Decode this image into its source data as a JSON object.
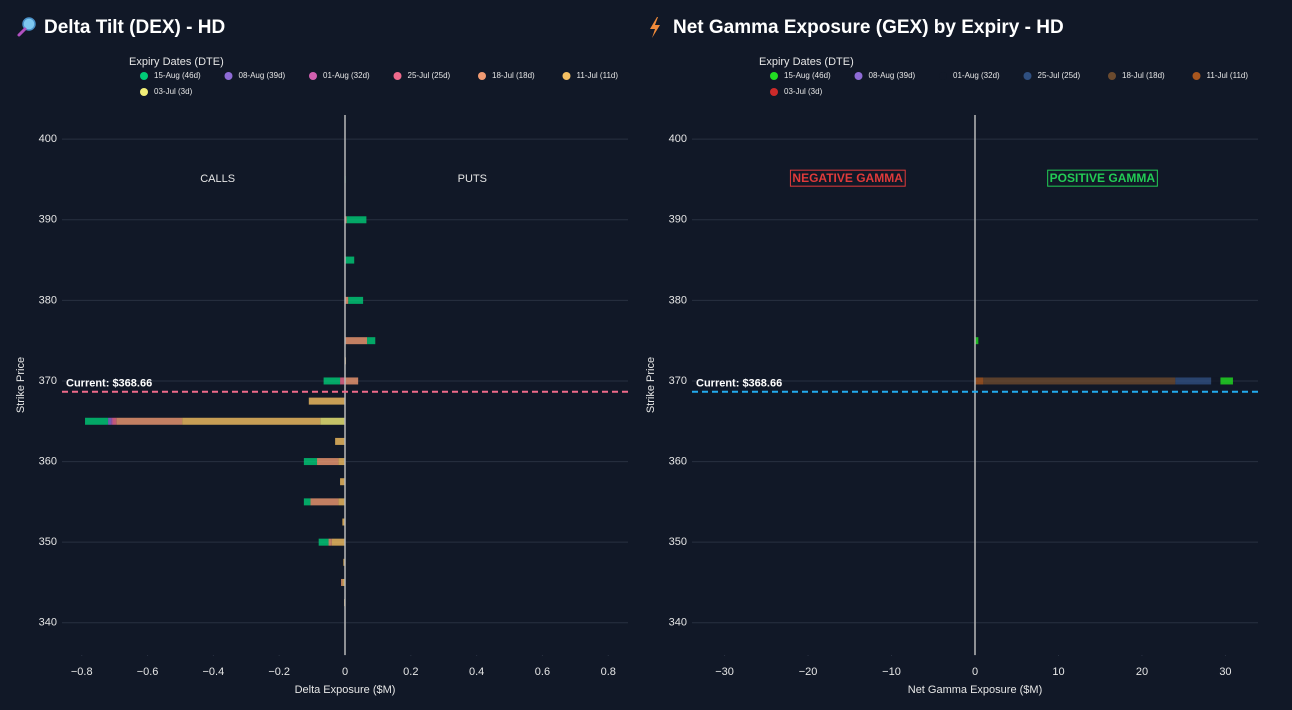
{
  "chart_data": [
    {
      "type": "bar",
      "orientation": "h",
      "stacked": true,
      "title": "Delta Tilt (DEX) - HD",
      "legend_title": "Expiry Dates (DTE)",
      "xlabel": "Delta Exposure ($M)",
      "ylabel": "Strike Price",
      "xlim": [
        -0.86,
        0.86
      ],
      "ylim": [
        336,
        403
      ],
      "xticks": [
        {
          "value": -0.8,
          "label": "−0.8"
        },
        {
          "value": -0.6,
          "label": "−0.6"
        },
        {
          "value": -0.4,
          "label": "−0.4"
        },
        {
          "value": -0.2,
          "label": "−0.2"
        },
        0,
        0.2,
        0.4,
        0.6,
        0.8
      ],
      "yticks": [
        340,
        350,
        360,
        370,
        380,
        390,
        400
      ],
      "grid": true,
      "annotations": [
        {
          "text": "CALLS"
        },
        {
          "text": "PUTS"
        }
      ],
      "current_line": {
        "value": 368.66,
        "label": "Current: $368.66",
        "color": "#f06a8a"
      },
      "y": [
        342.5,
        345,
        347.5,
        350,
        352.5,
        355,
        357.5,
        360,
        362.5,
        365,
        367.5,
        370,
        372.5,
        375,
        380,
        385,
        390,
        395
      ],
      "series": [
        {
          "name": "15-Aug (46d)",
          "color": "#00cc77",
          "values": [
            0,
            0,
            0,
            -0.03,
            0,
            -0.02,
            0,
            -0.04,
            0,
            -0.07,
            0,
            -0.05,
            0,
            0.025,
            0.045,
            0.028,
            0.06,
            0.002
          ]
        },
        {
          "name": "08-Aug (39d)",
          "color": "#8e6bd6",
          "values": [
            0,
            0,
            0,
            0,
            0,
            0,
            0,
            0,
            0,
            -0.01,
            0,
            0,
            0,
            0,
            0,
            0,
            0,
            0
          ]
        },
        {
          "name": "01-Aug (32d)",
          "color": "#d160b0",
          "values": [
            0,
            0,
            0,
            0,
            0,
            0,
            0,
            0,
            0,
            -0.005,
            0,
            0,
            0,
            0,
            0,
            0,
            0,
            0
          ]
        },
        {
          "name": "25-Jul (25d)",
          "color": "#ef6a8c",
          "values": [
            0,
            0,
            0,
            0,
            0,
            0,
            0,
            0,
            0,
            -0.01,
            0,
            -0.015,
            0,
            0,
            0,
            0,
            0,
            0
          ]
        },
        {
          "name": "18-Jul (18d)",
          "color": "#f09a72",
          "values": [
            0,
            -0.004,
            0,
            -0.01,
            0,
            -0.085,
            0,
            -0.065,
            0,
            -0.2,
            0,
            0.04,
            0,
            0.067,
            0.01,
            0,
            0.005,
            0
          ]
        },
        {
          "name": "11-Jul (11d)",
          "color": "#f5c062",
          "values": [
            -0.003,
            -0.008,
            -0.005,
            -0.04,
            -0.008,
            -0.02,
            -0.015,
            -0.02,
            -0.03,
            -0.42,
            -0.11,
            0,
            0.003,
            0,
            0,
            0,
            0,
            0
          ]
        },
        {
          "name": "03-Jul (3d)",
          "color": "#f2ee78",
          "values": [
            0,
            0,
            0,
            0,
            0,
            0,
            0,
            0,
            0,
            -0.075,
            0,
            0,
            0,
            0,
            0,
            0,
            0,
            0
          ]
        }
      ]
    },
    {
      "type": "bar",
      "orientation": "h",
      "stacked": true,
      "title": "Net Gamma Exposure (GEX) by Expiry - HD",
      "legend_title": "Expiry Dates (DTE)",
      "xlabel": "Net Gamma Exposure ($M)",
      "ylabel": "Strike Price",
      "xlim": [
        -33.9,
        33.9
      ],
      "ylim": [
        336,
        403
      ],
      "xticks": [
        {
          "value": -30,
          "label": "−30"
        },
        {
          "value": -20,
          "label": "−20"
        },
        {
          "value": -10,
          "label": "−10"
        },
        0,
        10,
        20,
        30
      ],
      "yticks": [
        340,
        350,
        360,
        370,
        380,
        390,
        400
      ],
      "grid": true,
      "annotations": [
        {
          "text": "NEGATIVE GAMMA",
          "color": "#e03a3a"
        },
        {
          "text": "POSITIVE GAMMA",
          "color": "#22cc55"
        }
      ],
      "current_line": {
        "value": 368.66,
        "label": "Current: $368.66",
        "color": "#22aaee"
      },
      "y": [
        355,
        370,
        375,
        380,
        385,
        390
      ],
      "series": [
        {
          "name": "15-Aug (46d)",
          "color": "#22dd22",
          "values": [
            0.05,
            1.5,
            0.4,
            0.05,
            0.05,
            0.05
          ]
        },
        {
          "name": "08-Aug (39d)",
          "color": "#8e6bd6",
          "values": [
            0,
            0,
            0,
            0,
            0,
            0
          ]
        },
        {
          "name": "01-Aug (32d)",
          "color": "#111827",
          "values": [
            0,
            1.1,
            0,
            0,
            0,
            0
          ]
        },
        {
          "name": "25-Jul (25d)",
          "color": "#2f4f80",
          "values": [
            0,
            4.3,
            0,
            0,
            0,
            0
          ]
        },
        {
          "name": "18-Jul (18d)",
          "color": "#6b4a2e",
          "values": [
            0,
            23,
            0,
            0,
            0,
            0
          ]
        },
        {
          "name": "11-Jul (11d)",
          "color": "#a8561e",
          "values": [
            0,
            1,
            0,
            0,
            0,
            0
          ]
        },
        {
          "name": "03-Jul (3d)",
          "color": "#cc2a2a",
          "values": [
            0,
            0,
            0,
            0,
            0,
            0
          ]
        }
      ]
    }
  ]
}
